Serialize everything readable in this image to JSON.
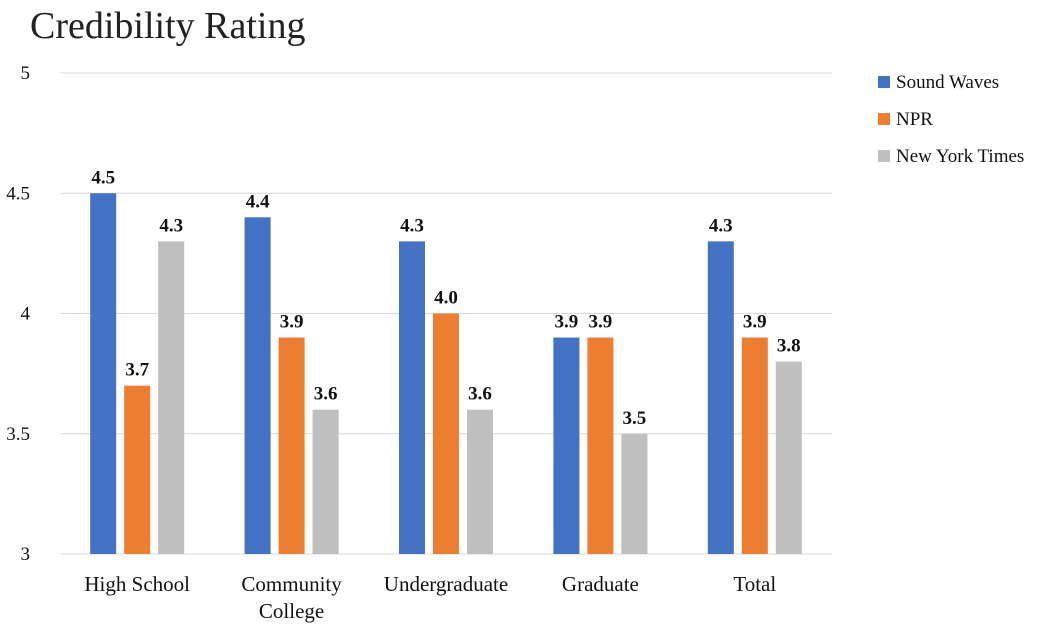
{
  "chart_data": {
    "type": "bar",
    "title": "Credibility Rating",
    "categories": [
      [
        "High School"
      ],
      [
        "Community",
        "College"
      ],
      [
        "Undergraduate"
      ],
      [
        "Graduate"
      ],
      [
        "Total"
      ]
    ],
    "series": [
      {
        "name": "Sound Waves",
        "color": "#4472C4",
        "values": [
          4.5,
          4.4,
          4.3,
          3.9,
          4.3
        ],
        "labels": [
          "4.5",
          "4.4",
          "4.3",
          "3.9",
          "4.3"
        ]
      },
      {
        "name": "NPR",
        "color": "#ED7D31",
        "values": [
          3.7,
          3.9,
          4.0,
          3.9,
          3.9
        ],
        "labels": [
          "3.7",
          "3.9",
          "4.0",
          "3.9",
          "3.9"
        ]
      },
      {
        "name": "New York Times",
        "color": "#BFBFBF",
        "values": [
          4.3,
          3.6,
          3.6,
          3.5,
          3.8
        ],
        "labels": [
          "4.3",
          "3.6",
          "3.6",
          "3.5",
          "3.8"
        ]
      }
    ],
    "ylim": [
      3,
      5
    ],
    "yticks": [
      "3",
      "3.5",
      "4",
      "4.5",
      "5"
    ],
    "ytick_values": [
      3,
      3.5,
      4,
      4.5,
      5
    ],
    "grid": true,
    "legend": "right",
    "xlabel": "",
    "ylabel": ""
  }
}
